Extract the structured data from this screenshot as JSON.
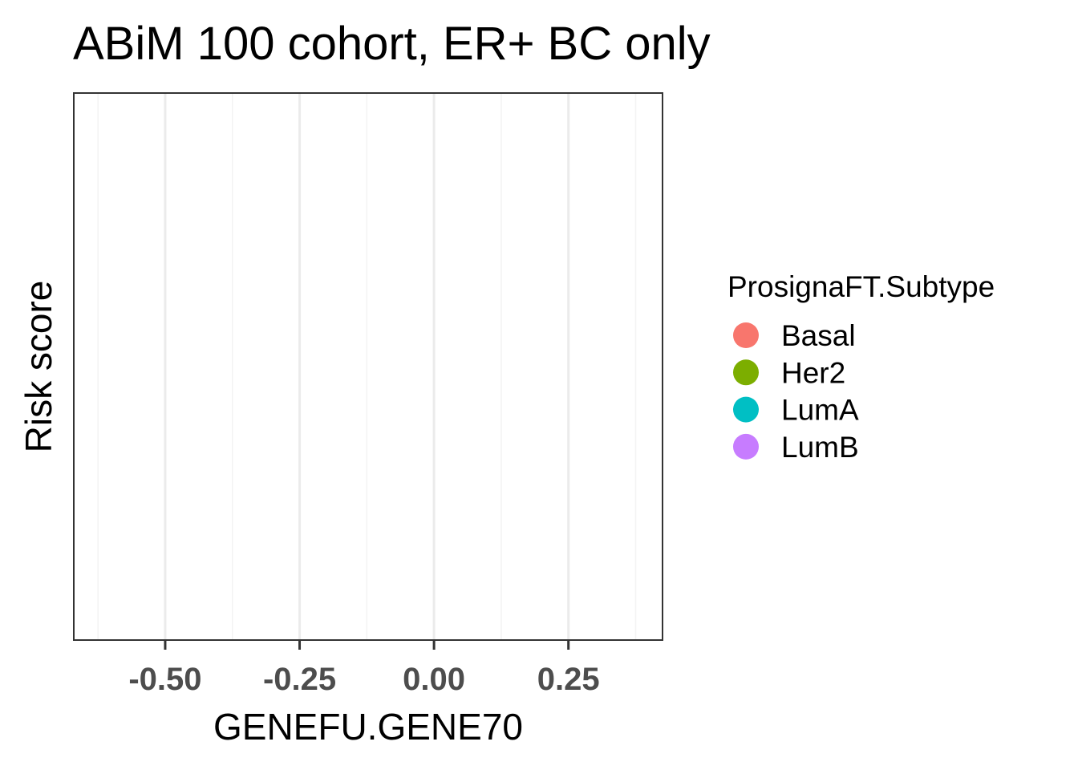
{
  "chart_data": {
    "type": "scatter",
    "title": "ABiM 100 cohort, ER+ BC only",
    "xlabel": "GENEFU.GENE70",
    "ylabel": "Risk score",
    "xlim": [
      -0.67,
      0.425
    ],
    "x_ticks": [
      -0.5,
      -0.25,
      0.0,
      0.25
    ],
    "x_tick_labels": [
      "-0.50",
      "-0.25",
      "0.00",
      "0.25"
    ],
    "x_minor_ticks": [
      -0.625,
      -0.375,
      -0.125,
      0.125,
      0.375
    ],
    "y_ticks": [],
    "grid": true,
    "legend": {
      "title": "ProsignaFT.Subtype",
      "placement": "right",
      "entries": [
        {
          "label": "Basal",
          "color": "#F8766D"
        },
        {
          "label": "Her2",
          "color": "#7CAE00"
        },
        {
          "label": "LumA",
          "color": "#00BFC4"
        },
        {
          "label": "LumB",
          "color": "#C77CFF"
        }
      ]
    },
    "series": [],
    "colors": {
      "panel_border": "#333333",
      "grid_major": "#ebebeb",
      "grid_minor": "#f3f3f3"
    }
  }
}
